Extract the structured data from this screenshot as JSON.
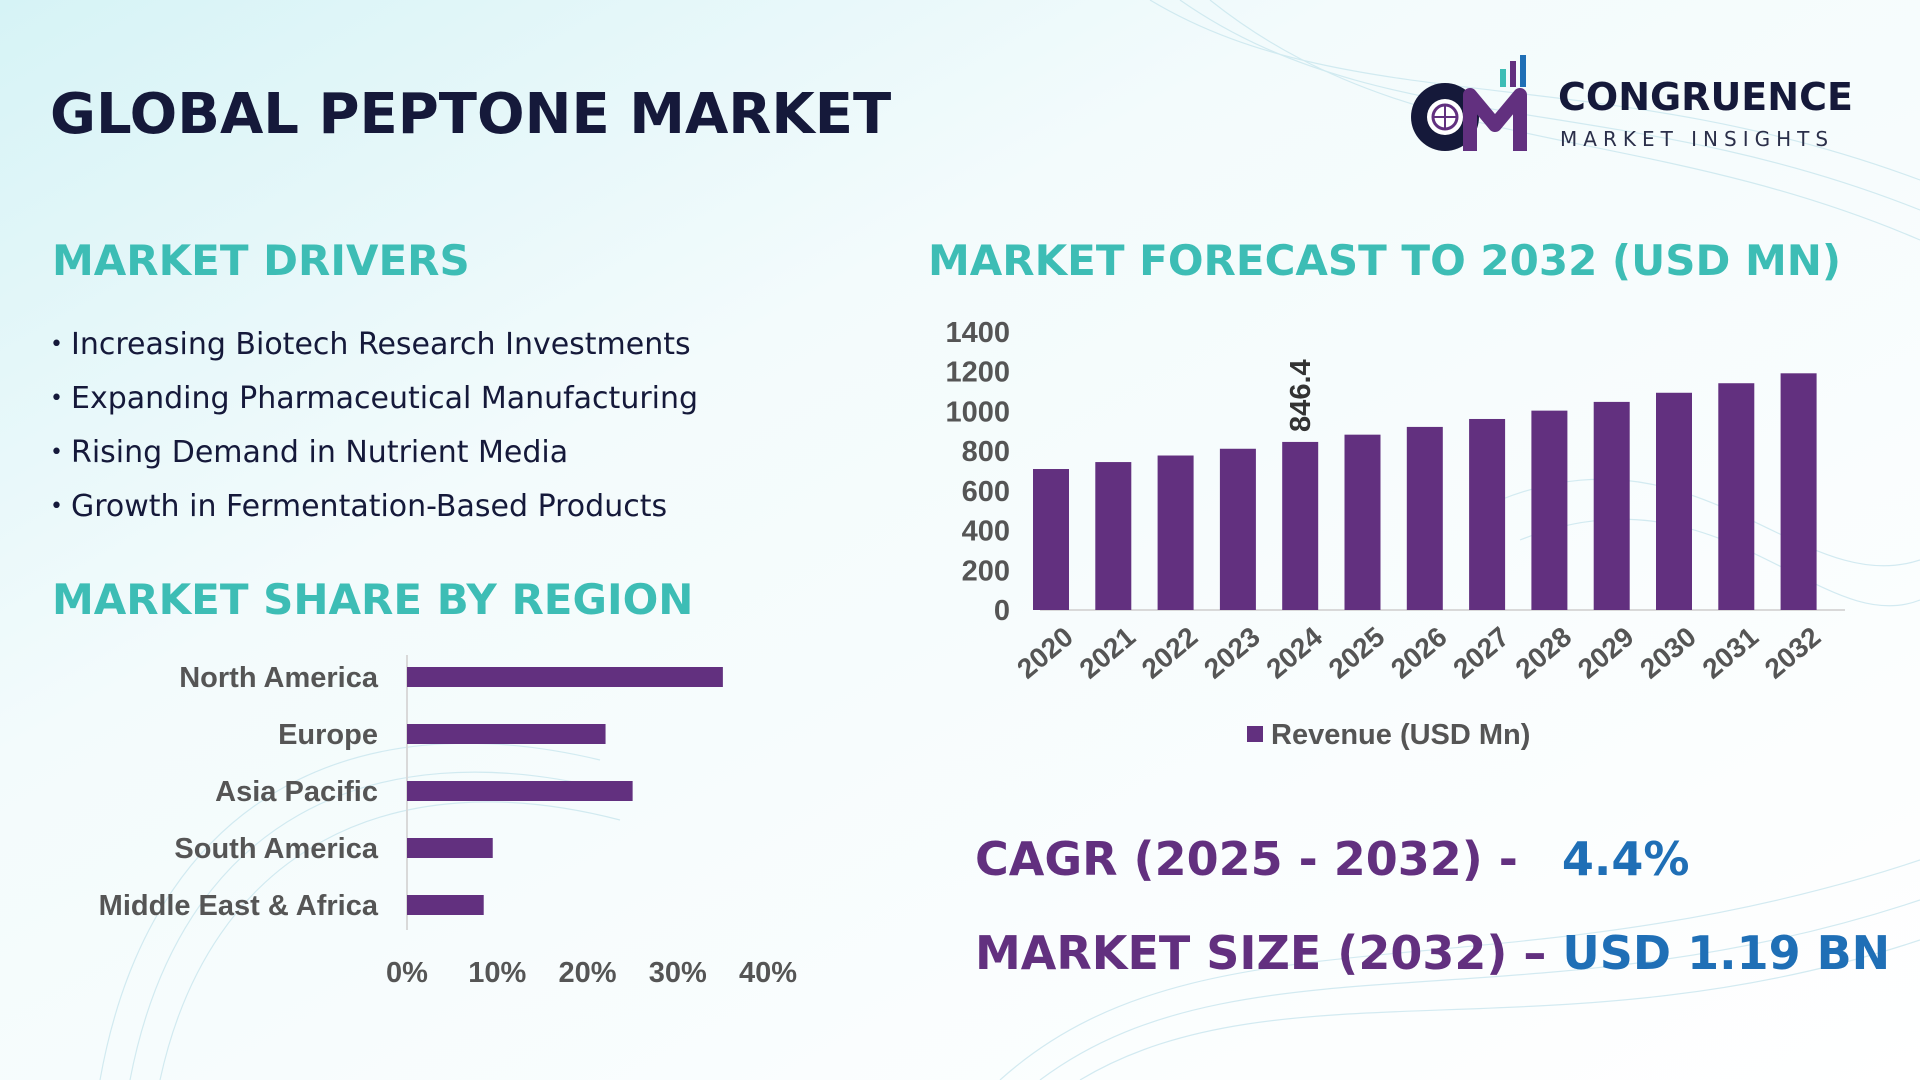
{
  "title": "GLOBAL PEPTONE MARKET",
  "logo": {
    "name": "CONGRUENCE",
    "tagline": "MARKET INSIGHTS",
    "icon": "cm-globe-chart-icon"
  },
  "sections": {
    "drivers_title": "MARKET DRIVERS",
    "region_title": "MARKET SHARE BY REGION",
    "forecast_title": "MARKET FORECAST TO 2032 (USD MN)"
  },
  "drivers": [
    "Increasing Biotech Research Investments",
    "Expanding Pharmaceutical Manufacturing",
    "Rising Demand in Nutrient Media",
    "Growth in Fermentation-Based Products"
  ],
  "kpis": {
    "cagr_label": "CAGR (2025 - 2032) -",
    "cagr_value": "4.4%",
    "size_label": "MARKET SIZE (2032) –",
    "size_value": "USD 1.19 BN"
  },
  "colors": {
    "bar": "#62307f",
    "teal": "#3dbdb5",
    "navy": "#15193a",
    "blue": "#1f6fb6"
  },
  "chart_data": [
    {
      "type": "bar",
      "orientation": "horizontal",
      "categories": [
        "North America",
        "Europe",
        "Asia Pacific",
        "South America",
        "Middle East & Africa"
      ],
      "values": [
        35,
        22,
        25,
        9.5,
        8.5
      ],
      "xlim": [
        0,
        40
      ],
      "xticks": [
        "0%",
        "10%",
        "20%",
        "30%",
        "40%"
      ],
      "grid": false
    },
    {
      "type": "bar",
      "categories": [
        "2020",
        "2021",
        "2022",
        "2023",
        "2024",
        "2025",
        "2026",
        "2027",
        "2028",
        "2029",
        "2030",
        "2031",
        "2032"
      ],
      "series": [
        {
          "name": "Revenue (USD Mn)",
          "values": [
            710,
            745,
            778,
            812,
            846.4,
            883,
            922,
            962,
            1004,
            1048,
            1094,
            1142,
            1192
          ]
        }
      ],
      "ylim": [
        0,
        1400
      ],
      "yticks": [
        0,
        200,
        400,
        600,
        800,
        1000,
        1200,
        1400
      ],
      "data_labels": [
        {
          "category": "2024",
          "label": "846.4"
        }
      ],
      "legend": "bottom",
      "grid": false
    }
  ]
}
